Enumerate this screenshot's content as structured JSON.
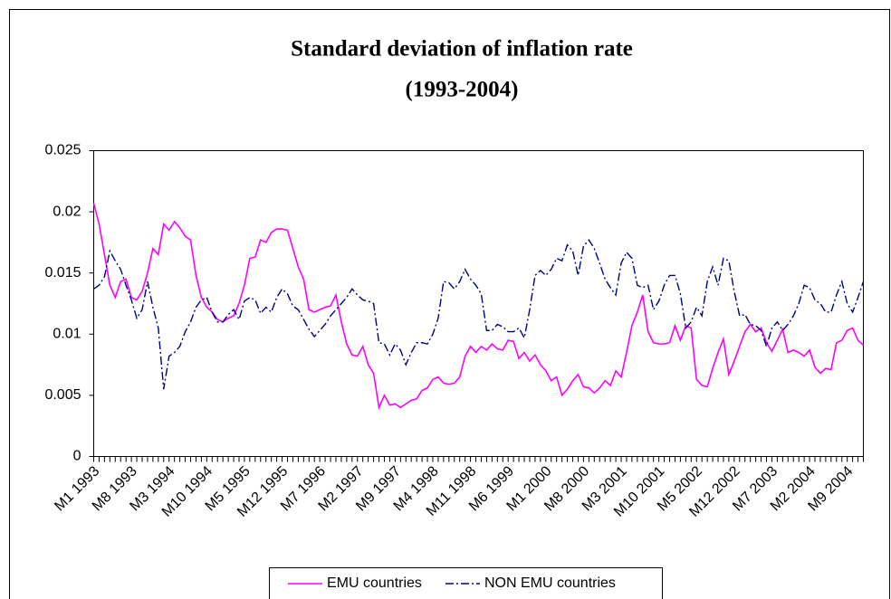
{
  "chart_data": {
    "type": "line",
    "title": [
      "Standard deviation of inflation rate",
      "(1993-2004)"
    ],
    "categories": [
      "M1 1993",
      null,
      null,
      null,
      null,
      null,
      null,
      "M8 1993",
      null,
      null,
      null,
      null,
      null,
      null,
      "M3 1994",
      null,
      null,
      null,
      null,
      null,
      null,
      "M10 1994",
      null,
      null,
      null,
      null,
      null,
      null,
      "M5 1995",
      null,
      null,
      null,
      null,
      null,
      null,
      "M12 1995",
      null,
      null,
      null,
      null,
      null,
      null,
      "M7 1996",
      null,
      null,
      null,
      null,
      null,
      null,
      "M2 1997",
      null,
      null,
      null,
      null,
      null,
      null,
      "M9 1997",
      null,
      null,
      null,
      null,
      null,
      null,
      "M4 1998",
      null,
      null,
      null,
      null,
      null,
      null,
      "M11 1998",
      null,
      null,
      null,
      null,
      null,
      null,
      "M6 1999",
      null,
      null,
      null,
      null,
      null,
      null,
      "M1 2000",
      null,
      null,
      null,
      null,
      null,
      null,
      "M8 2000",
      null,
      null,
      null,
      null,
      null,
      null,
      "M3 2001",
      null,
      null,
      null,
      null,
      null,
      null,
      "M10 2001",
      null,
      null,
      null,
      null,
      null,
      null,
      "M5 2002",
      null,
      null,
      null,
      null,
      null,
      null,
      "M12 2002",
      null,
      null,
      null,
      null,
      null,
      null,
      "M7 2003",
      null,
      null,
      null,
      null,
      null,
      null,
      "M2 2004",
      null,
      null,
      null,
      null,
      null,
      null,
      "M9 2004",
      null,
      null,
      null
    ],
    "series": [
      {
        "name": "EMU countries",
        "color": "#ff00ff",
        "dash": "solid",
        "values": [
          0.0207,
          0.019,
          0.0165,
          0.014,
          0.013,
          0.0143,
          0.0145,
          0.013,
          0.0128,
          0.0135,
          0.015,
          0.017,
          0.0165,
          0.019,
          0.0185,
          0.0192,
          0.0187,
          0.018,
          0.0177,
          0.0148,
          0.013,
          0.0122,
          0.0118,
          0.0112,
          0.011,
          0.0113,
          0.0115,
          0.0125,
          0.014,
          0.0162,
          0.0163,
          0.0177,
          0.0175,
          0.0183,
          0.0186,
          0.0186,
          0.0185,
          0.017,
          0.0155,
          0.0145,
          0.012,
          0.0118,
          0.012,
          0.0122,
          0.0123,
          0.0132,
          0.011,
          0.0092,
          0.0083,
          0.0082,
          0.009,
          0.0075,
          0.0068,
          0.004,
          0.005,
          0.0042,
          0.0043,
          0.004,
          0.0043,
          0.0046,
          0.0047,
          0.0054,
          0.0056,
          0.0063,
          0.0065,
          0.006,
          0.0059,
          0.006,
          0.0065,
          0.0082,
          0.009,
          0.0085,
          0.009,
          0.0087,
          0.0092,
          0.0088,
          0.0087,
          0.0095,
          0.0094,
          0.008,
          0.0085,
          0.0078,
          0.0083,
          0.0075,
          0.007,
          0.0062,
          0.0065,
          0.005,
          0.0055,
          0.0062,
          0.0067,
          0.0057,
          0.0056,
          0.0052,
          0.0056,
          0.0062,
          0.0058,
          0.007,
          0.0065,
          0.0085,
          0.0107,
          0.0118,
          0.0132,
          0.0102,
          0.0093,
          0.0092,
          0.0092,
          0.0093,
          0.0107,
          0.0095,
          0.0107,
          0.0105,
          0.0063,
          0.0058,
          0.0057,
          0.0072,
          0.0085,
          0.0096,
          0.0067,
          0.0078,
          0.009,
          0.0102,
          0.0108,
          0.0102,
          0.0105,
          0.0093,
          0.0086,
          0.0095,
          0.0104,
          0.0085,
          0.0087,
          0.0085,
          0.0082,
          0.0087,
          0.0073,
          0.0068,
          0.0072,
          0.0071,
          0.0093,
          0.0095,
          0.0103,
          0.0105,
          0.0095,
          0.0091
        ]
      },
      {
        "name": "NON EMU countries",
        "color": "#000080",
        "dash": "dashdot",
        "values": [
          0.0137,
          0.014,
          0.0147,
          0.0168,
          0.016,
          0.0153,
          0.014,
          0.0128,
          0.0113,
          0.012,
          0.0143,
          0.0122,
          0.0105,
          0.0055,
          0.0082,
          0.0085,
          0.009,
          0.0102,
          0.011,
          0.0122,
          0.0128,
          0.013,
          0.0118,
          0.011,
          0.011,
          0.0116,
          0.012,
          0.0112,
          0.0127,
          0.013,
          0.0128,
          0.0117,
          0.0122,
          0.0118,
          0.013,
          0.0137,
          0.0133,
          0.0123,
          0.012,
          0.0112,
          0.0104,
          0.0098,
          0.0103,
          0.0108,
          0.0115,
          0.012,
          0.0125,
          0.013,
          0.0137,
          0.0132,
          0.0128,
          0.0127,
          0.0125,
          0.0093,
          0.0092,
          0.0083,
          0.0092,
          0.0087,
          0.0075,
          0.0085,
          0.0093,
          0.0093,
          0.0092,
          0.01,
          0.0113,
          0.0143,
          0.0142,
          0.0137,
          0.0143,
          0.0153,
          0.0145,
          0.014,
          0.0133,
          0.0103,
          0.0103,
          0.0108,
          0.0106,
          0.0102,
          0.0102,
          0.0105,
          0.0097,
          0.012,
          0.0148,
          0.0152,
          0.0148,
          0.0153,
          0.0162,
          0.016,
          0.0173,
          0.0168,
          0.0148,
          0.0172,
          0.0177,
          0.017,
          0.0158,
          0.0145,
          0.0138,
          0.0132,
          0.0158,
          0.0167,
          0.0162,
          0.014,
          0.0138,
          0.014,
          0.012,
          0.0127,
          0.014,
          0.0148,
          0.0148,
          0.0133,
          0.0105,
          0.011,
          0.0122,
          0.0115,
          0.0143,
          0.0155,
          0.014,
          0.0162,
          0.016,
          0.0135,
          0.0115,
          0.0116,
          0.0108,
          0.0107,
          0.0103,
          0.009,
          0.0105,
          0.011,
          0.0103,
          0.0108,
          0.0115,
          0.0125,
          0.014,
          0.0138,
          0.0128,
          0.0125,
          0.0118,
          0.0118,
          0.0132,
          0.0143,
          0.0125,
          0.0118,
          0.013,
          0.0143
        ]
      }
    ],
    "ylim": [
      0,
      0.025
    ],
    "yticks": [
      0,
      0.005,
      0.01,
      0.015,
      0.02,
      0.025
    ],
    "grid": false,
    "legend": "bottom"
  }
}
